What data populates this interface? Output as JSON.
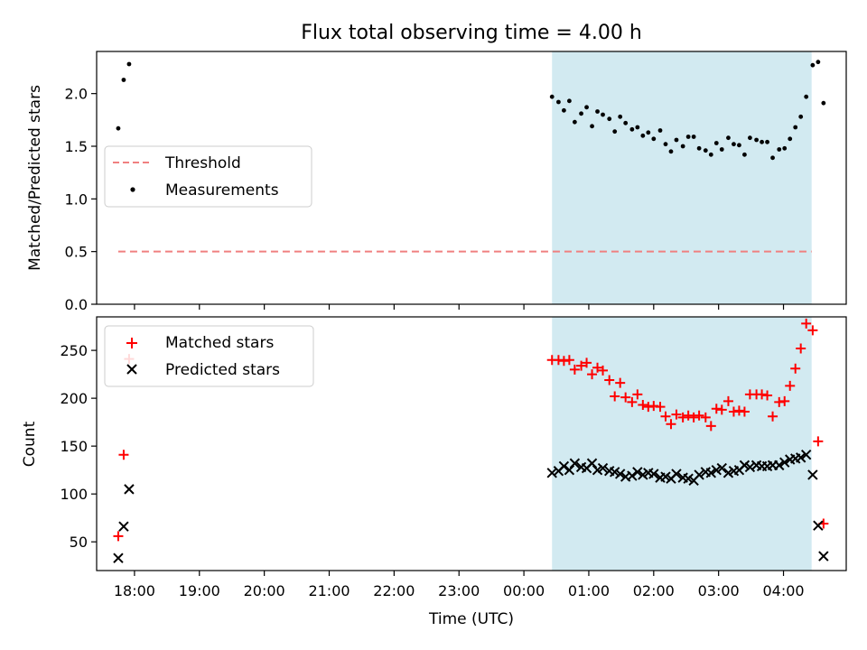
{
  "title": "Flux total observing time = 4.00 h",
  "xlabel": "Time (UTC)",
  "x_ticks": [
    "18:00",
    "19:00",
    "20:00",
    "21:00",
    "22:00",
    "23:00",
    "00:00",
    "01:00",
    "02:00",
    "03:00",
    "04:00"
  ],
  "x_range": [
    "17:25",
    "04:58 (+1d)"
  ],
  "shaded_interval": {
    "start": "00:26",
    "end": "04:26",
    "color": "#add8e6"
  },
  "colors": {
    "threshold": "#f08080",
    "measurements": "#000000",
    "matched": "#ff0000",
    "predicted": "#000000"
  },
  "chart_data": [
    {
      "type": "scatter",
      "title": "Flux total observing time = 4.00 h",
      "xlabel": "",
      "ylabel": "Matched/Predicted stars",
      "ylim": [
        0,
        2.4
      ],
      "y_ticks": [
        "0.0",
        "0.5",
        "1.0",
        "1.5",
        "2.0"
      ],
      "legend_placement": "center-left",
      "legend": [
        "Threshold",
        "Measurements"
      ],
      "threshold": {
        "name": "Threshold",
        "value": 0.5,
        "x_start": "17:45",
        "x_end": "04:26"
      },
      "series": [
        {
          "name": "Measurements",
          "marker": "dot",
          "points": [
            [
              "17:45",
              1.67
            ],
            [
              "17:50",
              2.13
            ],
            [
              "17:55",
              2.28
            ],
            [
              "00:26",
              1.97
            ],
            [
              "00:32",
              1.92
            ],
            [
              "00:37",
              1.84
            ],
            [
              "00:42",
              1.93
            ],
            [
              "00:47",
              1.73
            ],
            [
              "00:53",
              1.81
            ],
            [
              "00:58",
              1.87
            ],
            [
              "01:03",
              1.69
            ],
            [
              "01:08",
              1.83
            ],
            [
              "01:13",
              1.8
            ],
            [
              "01:19",
              1.76
            ],
            [
              "01:24",
              1.64
            ],
            [
              "01:29",
              1.78
            ],
            [
              "01:34",
              1.72
            ],
            [
              "01:40",
              1.66
            ],
            [
              "01:45",
              1.68
            ],
            [
              "01:50",
              1.6
            ],
            [
              "01:55",
              1.63
            ],
            [
              "02:00",
              1.57
            ],
            [
              "02:06",
              1.65
            ],
            [
              "02:11",
              1.52
            ],
            [
              "02:16",
              1.45
            ],
            [
              "02:21",
              1.56
            ],
            [
              "02:27",
              1.5
            ],
            [
              "02:32",
              1.59
            ],
            [
              "02:37",
              1.59
            ],
            [
              "02:42",
              1.48
            ],
            [
              "02:48",
              1.46
            ],
            [
              "02:53",
              1.42
            ],
            [
              "02:58",
              1.53
            ],
            [
              "03:03",
              1.47
            ],
            [
              "03:09",
              1.58
            ],
            [
              "03:14",
              1.52
            ],
            [
              "03:19",
              1.51
            ],
            [
              "03:24",
              1.42
            ],
            [
              "03:29",
              1.58
            ],
            [
              "03:35",
              1.56
            ],
            [
              "03:40",
              1.54
            ],
            [
              "03:45",
              1.54
            ],
            [
              "03:50",
              1.39
            ],
            [
              "03:56",
              1.47
            ],
            [
              "04:01",
              1.48
            ],
            [
              "04:06",
              1.57
            ],
            [
              "04:11",
              1.68
            ],
            [
              "04:16",
              1.78
            ],
            [
              "04:21",
              1.97
            ],
            [
              "04:27",
              2.27
            ],
            [
              "04:32",
              2.3
            ],
            [
              "04:37",
              1.91
            ]
          ]
        }
      ]
    },
    {
      "type": "scatter",
      "title": "",
      "xlabel": "Time (UTC)",
      "ylabel": "Count",
      "ylim": [
        20,
        285
      ],
      "y_ticks": [
        "50",
        "100",
        "150",
        "200",
        "250"
      ],
      "legend_placement": "top-left",
      "legend": [
        "Matched stars",
        "Predicted stars"
      ],
      "series": [
        {
          "name": "Matched stars",
          "marker": "plus",
          "points": [
            [
              "17:45",
              56
            ],
            [
              "17:50",
              141
            ],
            [
              "17:55",
              241
            ],
            [
              "00:26",
              240
            ],
            [
              "00:32",
              240
            ],
            [
              "00:37",
              239
            ],
            [
              "00:42",
              240
            ],
            [
              "00:47",
              230
            ],
            [
              "00:53",
              234
            ],
            [
              "00:58",
              237
            ],
            [
              "01:03",
              225
            ],
            [
              "01:08",
              232
            ],
            [
              "01:13",
              229
            ],
            [
              "01:19",
              219
            ],
            [
              "01:24",
              202
            ],
            [
              "01:29",
              216
            ],
            [
              "01:34",
              201
            ],
            [
              "01:40",
              196
            ],
            [
              "01:45",
              204
            ],
            [
              "01:50",
              193
            ],
            [
              "01:55",
              191
            ],
            [
              "02:00",
              192
            ],
            [
              "02:06",
              191
            ],
            [
              "02:11",
              181
            ],
            [
              "02:16",
              173
            ],
            [
              "02:21",
              183
            ],
            [
              "02:27",
              180
            ],
            [
              "02:32",
              182
            ],
            [
              "02:37",
              180
            ],
            [
              "02:42",
              182
            ],
            [
              "02:48",
              180
            ],
            [
              "02:53",
              171
            ],
            [
              "02:58",
              189
            ],
            [
              "03:03",
              188
            ],
            [
              "03:09",
              197
            ],
            [
              "03:14",
              186
            ],
            [
              "03:19",
              187
            ],
            [
              "03:24",
              186
            ],
            [
              "03:29",
              204
            ],
            [
              "03:35",
              204
            ],
            [
              "03:40",
              204
            ],
            [
              "03:45",
              203
            ],
            [
              "03:50",
              181
            ],
            [
              "03:56",
              196
            ],
            [
              "04:01",
              197
            ],
            [
              "04:06",
              213
            ],
            [
              "04:11",
              231
            ],
            [
              "04:16",
              252
            ],
            [
              "04:21",
              278
            ],
            [
              "04:27",
              271
            ],
            [
              "04:32",
              155
            ],
            [
              "04:37",
              69
            ]
          ]
        },
        {
          "name": "Predicted stars",
          "marker": "x",
          "points": [
            [
              "17:45",
              33
            ],
            [
              "17:50",
              66
            ],
            [
              "17:55",
              105
            ],
            [
              "00:26",
              122
            ],
            [
              "00:32",
              124
            ],
            [
              "00:37",
              129
            ],
            [
              "00:42",
              125
            ],
            [
              "00:47",
              132
            ],
            [
              "00:53",
              128
            ],
            [
              "00:58",
              127
            ],
            [
              "01:03",
              132
            ],
            [
              "01:08",
              125
            ],
            [
              "01:13",
              127
            ],
            [
              "01:19",
              124
            ],
            [
              "01:24",
              123
            ],
            [
              "01:29",
              121
            ],
            [
              "01:34",
              118
            ],
            [
              "01:40",
              119
            ],
            [
              "01:45",
              123
            ],
            [
              "01:50",
              120
            ],
            [
              "01:55",
              122
            ],
            [
              "02:00",
              121
            ],
            [
              "02:06",
              117
            ],
            [
              "02:11",
              118
            ],
            [
              "02:16",
              116
            ],
            [
              "02:21",
              121
            ],
            [
              "02:27",
              117
            ],
            [
              "02:32",
              116
            ],
            [
              "02:37",
              114
            ],
            [
              "02:42",
              120
            ],
            [
              "02:48",
              123
            ],
            [
              "02:53",
              122
            ],
            [
              "02:58",
              125
            ],
            [
              "03:03",
              127
            ],
            [
              "03:09",
              122
            ],
            [
              "03:14",
              124
            ],
            [
              "03:19",
              125
            ],
            [
              "03:24",
              130
            ],
            [
              "03:29",
              128
            ],
            [
              "03:35",
              130
            ],
            [
              "03:40",
              129
            ],
            [
              "03:45",
              129
            ],
            [
              "03:50",
              130
            ],
            [
              "03:56",
              130
            ],
            [
              "04:01",
              133
            ],
            [
              "04:06",
              136
            ],
            [
              "04:11",
              137
            ],
            [
              "04:16",
              138
            ],
            [
              "04:21",
              141
            ],
            [
              "04:27",
              120
            ],
            [
              "04:32",
              67
            ],
            [
              "04:37",
              35
            ]
          ]
        }
      ]
    }
  ]
}
